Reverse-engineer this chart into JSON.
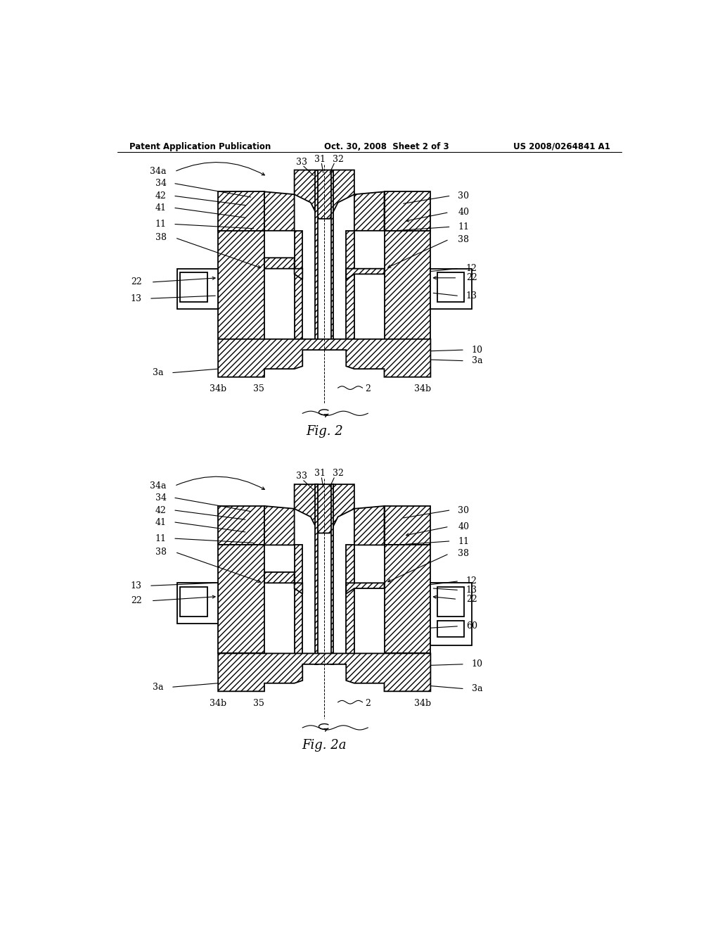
{
  "bg_color": "#ffffff",
  "header_left": "Patent Application Publication",
  "header_mid": "Oct. 30, 2008  Sheet 2 of 3",
  "header_right": "US 2008/0264841 A1",
  "fig2_caption": "Fig. 2",
  "fig2a_caption": "Fig. 2a"
}
